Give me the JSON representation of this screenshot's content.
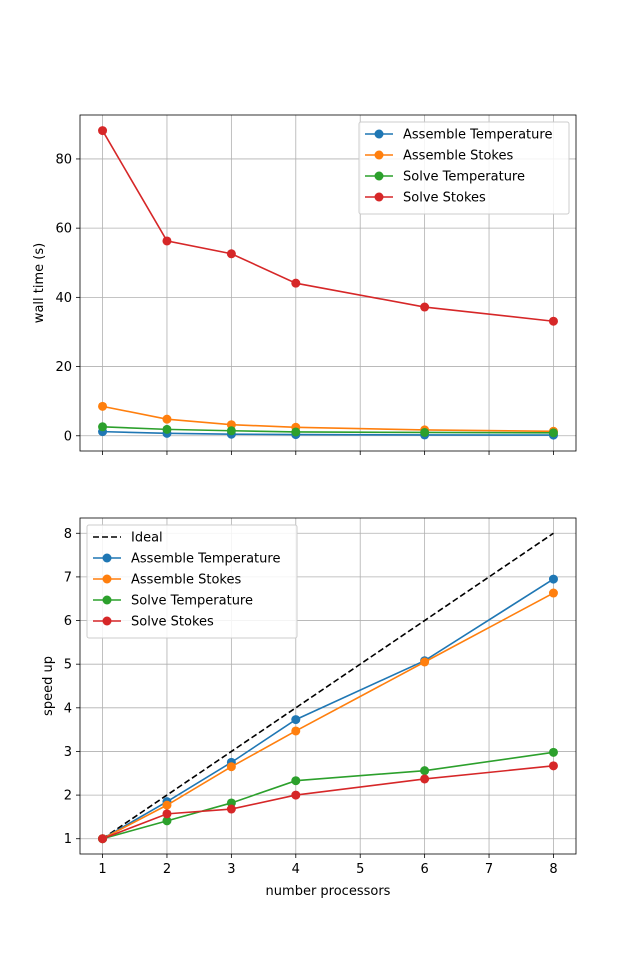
{
  "chart_data": [
    {
      "type": "line",
      "ylabel": "wall time (s)",
      "xlabel": "",
      "x": [
        1,
        2,
        3,
        4,
        6,
        8
      ],
      "xlim": [
        0.65,
        8.35
      ],
      "ylim": [
        -4.4,
        92.7
      ],
      "xticks": [
        "1",
        "2",
        "3",
        "4",
        "5",
        "6",
        "7",
        "8"
      ],
      "yticks": [
        "0",
        "20",
        "40",
        "60",
        "80"
      ],
      "grid": true,
      "legend_position": "top-right",
      "series": [
        {
          "name": "Assemble Temperature",
          "color": "#1f77b4",
          "marker": "circle",
          "values": [
            1.2,
            0.7,
            0.45,
            0.35,
            0.25,
            0.2
          ]
        },
        {
          "name": "Assemble Stokes",
          "color": "#ff7f0e",
          "marker": "circle",
          "values": [
            8.5,
            4.8,
            3.2,
            2.45,
            1.7,
            1.3
          ]
        },
        {
          "name": "Solve Temperature",
          "color": "#2ca02c",
          "marker": "circle",
          "values": [
            2.6,
            1.85,
            1.45,
            1.1,
            0.95,
            0.85
          ]
        },
        {
          "name": "Solve Stokes",
          "color": "#d62728",
          "marker": "circle",
          "values": [
            88.2,
            56.3,
            52.6,
            44.1,
            37.2,
            33.1
          ]
        }
      ]
    },
    {
      "type": "line",
      "ylabel": "speed up",
      "xlabel": "number processors",
      "x": [
        1,
        2,
        3,
        4,
        6,
        8
      ],
      "xlim": [
        0.65,
        8.35
      ],
      "ylim": [
        0.65,
        8.35
      ],
      "xticks": [
        "1",
        "2",
        "3",
        "4",
        "5",
        "6",
        "7",
        "8"
      ],
      "yticks": [
        "1",
        "2",
        "3",
        "4",
        "5",
        "6",
        "7",
        "8"
      ],
      "grid": true,
      "legend_position": "top-left",
      "series": [
        {
          "name": "Ideal",
          "color": "#000000",
          "dashed": true,
          "marker": "none",
          "values": [
            1,
            2,
            3,
            4,
            6,
            8
          ]
        },
        {
          "name": "Assemble Temperature",
          "color": "#1f77b4",
          "marker": "circle",
          "values": [
            1.0,
            1.85,
            2.75,
            3.73,
            5.08,
            6.95
          ]
        },
        {
          "name": "Assemble Stokes",
          "color": "#ff7f0e",
          "marker": "circle",
          "values": [
            1.0,
            1.77,
            2.65,
            3.47,
            5.05,
            6.63
          ]
        },
        {
          "name": "Solve Temperature",
          "color": "#2ca02c",
          "marker": "circle",
          "values": [
            1.0,
            1.41,
            1.82,
            2.33,
            2.56,
            2.98
          ]
        },
        {
          "name": "Solve Stokes",
          "color": "#d62728",
          "marker": "circle",
          "values": [
            1.0,
            1.57,
            1.68,
            2.0,
            2.37,
            2.67
          ]
        }
      ]
    }
  ]
}
